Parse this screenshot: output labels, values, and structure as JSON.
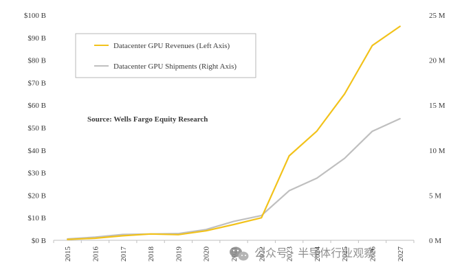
{
  "chart_data": {
    "type": "line",
    "x": [
      "2015",
      "2016",
      "2017",
      "2018",
      "2019",
      "2020",
      "2021",
      "2022",
      "2023",
      "2024",
      "2025",
      "2026",
      "2027"
    ],
    "series": [
      {
        "name": "Datacenter GPU Revenues (Left Axis)",
        "axis": "left",
        "color": "#f2c21a",
        "values": [
          0.4,
          0.9,
          2.0,
          2.8,
          2.5,
          4.2,
          7.0,
          10.0,
          37.5,
          48.5,
          65.0,
          86.5,
          95.0
        ]
      },
      {
        "name": "Datacenter GPU Shipments (Right Axis)",
        "axis": "right",
        "color": "#bfbfbf",
        "values": [
          0.15,
          0.35,
          0.65,
          0.7,
          0.75,
          1.2,
          2.1,
          2.75,
          5.5,
          6.9,
          9.1,
          12.1,
          13.5
        ]
      }
    ],
    "y_left": {
      "lim": [
        0,
        100
      ],
      "tick_labels": [
        "$0 B",
        "$10 B",
        "$20 B",
        "$30 B",
        "$40 B",
        "$50 B",
        "$60 B",
        "$70 B",
        "$80 B",
        "$90 B",
        "$100 B"
      ]
    },
    "y_right": {
      "lim": [
        0,
        25
      ],
      "tick_labels": [
        "0 M",
        "5 M",
        "10 M",
        "15 M",
        "20 M",
        "25 M"
      ]
    },
    "annotation": "Source: Wells Fargo Equity Research",
    "legend_placement": "top-left",
    "grid": false
  },
  "watermark": {
    "text": "公众号 · 半导体行业观察",
    "icon": "wechat-icon"
  }
}
